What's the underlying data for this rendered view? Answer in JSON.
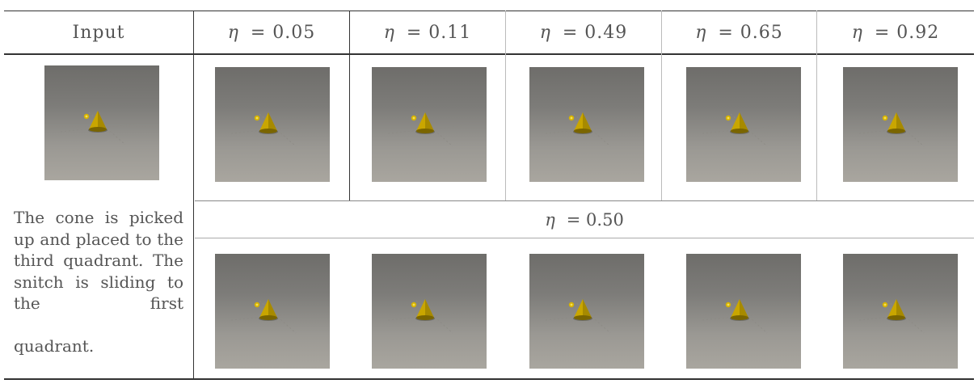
{
  "header": {
    "input_label": "Input",
    "eta_symbol": "η",
    "columns": [
      {
        "label": "= 0.05"
      },
      {
        "label": "= 0.11"
      },
      {
        "label": "= 0.49"
      },
      {
        "label": "= 0.65"
      },
      {
        "label": "= 0.92"
      }
    ]
  },
  "middle_row": {
    "label": "= 0.50"
  },
  "caption": {
    "text": "The cone is picked up and placed to the third quadrant. The snitch is sliding to the first",
    "last_line": "quadrant."
  },
  "colors": {
    "cone": "#c9a600",
    "floor_dark": "#6e6d6a",
    "floor_light": "#a9a69f"
  }
}
